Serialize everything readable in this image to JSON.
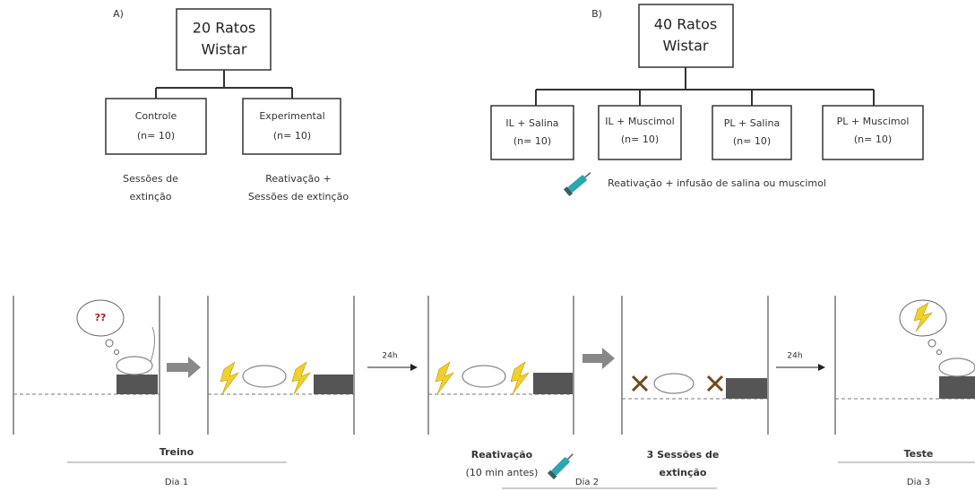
{
  "panel_a": {
    "label": "A)",
    "root": [
      "20 Ratos",
      "Wistar"
    ],
    "groups": [
      {
        "name": "Controle",
        "n": "(n= 10)",
        "procedure": [
          "Sessões de",
          "extinção"
        ]
      },
      {
        "name": "Experimental",
        "n": "(n= 10)",
        "procedure": [
          "Reativação +",
          "Sessões de extinção"
        ]
      }
    ]
  },
  "panel_b": {
    "label": "B)",
    "root": [
      "40 Ratos",
      "Wistar"
    ],
    "groups": [
      {
        "name": "IL + Salina",
        "n": "(n= 10)"
      },
      {
        "name": "IL + Muscimol",
        "n": "(n= 10)"
      },
      {
        "name": "PL + Salina",
        "n": "(n= 10)"
      },
      {
        "name": "PL + Muscimol",
        "n": "(n= 10)"
      }
    ],
    "note": "Reativação + infusão de salina ou muscimol"
  },
  "timeline": {
    "thought": "??",
    "arrow_labels": [
      "24h",
      "24h"
    ],
    "steps": [
      [
        "Treino"
      ],
      [
        "Reativação",
        "(10 min antes)"
      ],
      [
        "3 Sessões de",
        "extinção"
      ],
      [
        "Teste"
      ]
    ],
    "days": [
      "Dia 1",
      "Dia 2",
      "Dia 3"
    ]
  }
}
